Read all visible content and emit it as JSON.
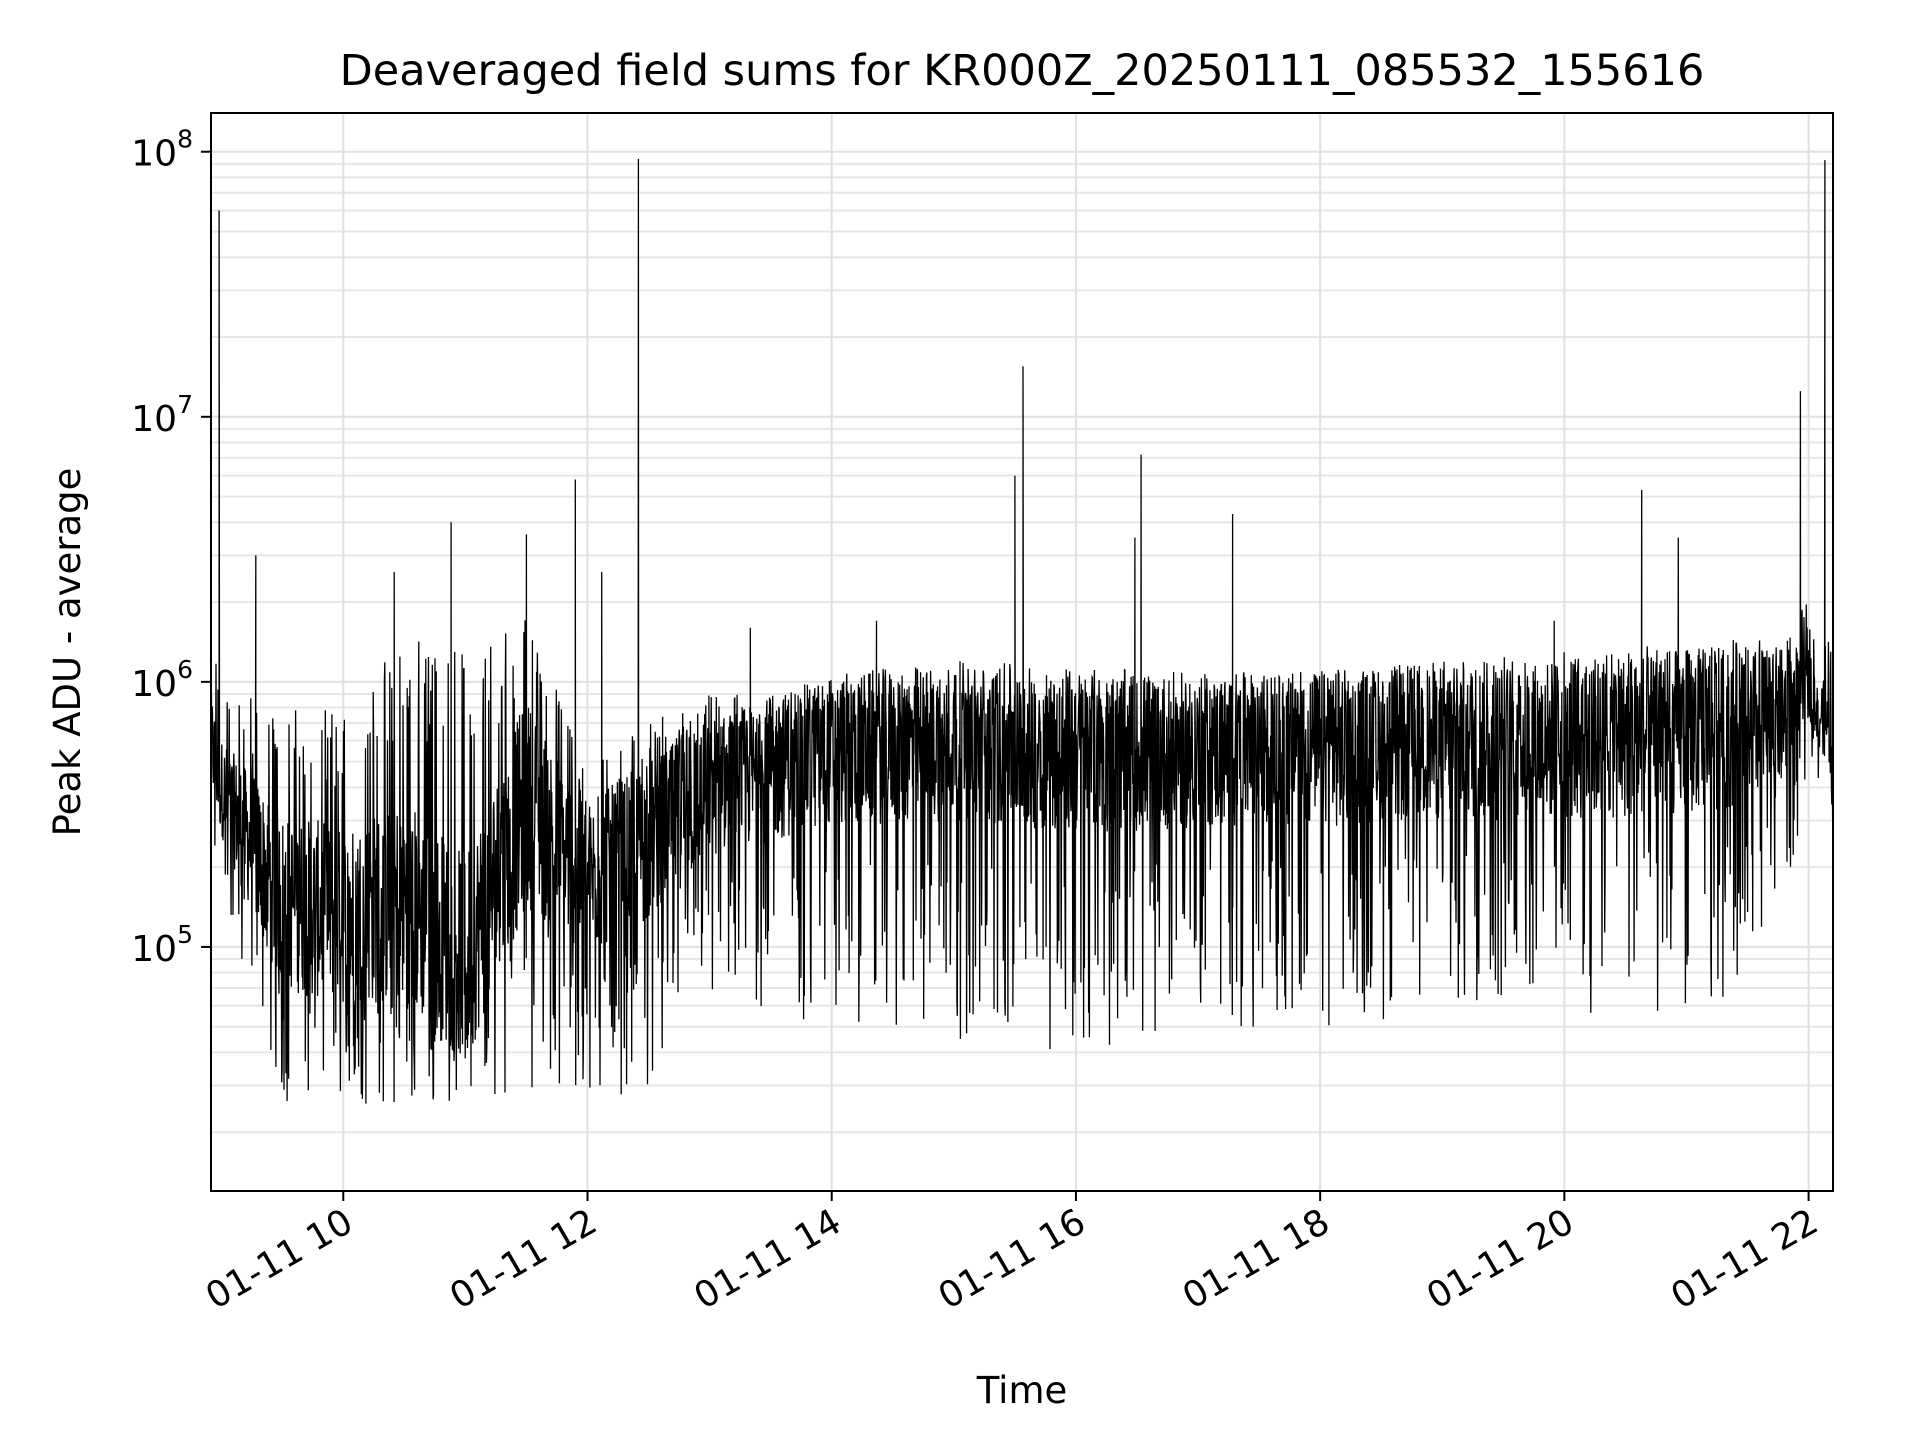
{
  "chart_data": {
    "type": "line",
    "title": "Deaveraged field sums for KR000Z_20250111_085532_155616",
    "xlabel": "Time",
    "ylabel": "Peak ADU - average",
    "y_scale": "log",
    "grid": true,
    "legend": "none",
    "line_color": "#000000",
    "xlim": [
      "2025-01-11 08:55",
      "2025-01-11 22:12"
    ],
    "ylim": [
      12000,
      140000000
    ],
    "x_ticks": [
      "01-11 10",
      "01-11 12",
      "01-11 14",
      "01-11 16",
      "01-11 18",
      "01-11 20",
      "01-11 22"
    ],
    "y_ticks": [
      {
        "base": "10",
        "exp": "5"
      },
      {
        "base": "10",
        "exp": "6"
      },
      {
        "base": "10",
        "exp": "7"
      },
      {
        "base": "10",
        "exp": "8"
      }
    ],
    "series": [
      {
        "x": [
          "2025-01-11 08:55",
          "2025-01-11 09:00",
          "2025-01-11 09:30",
          "2025-01-11 10:00",
          "2025-01-11 10:30",
          "2025-01-11 11:00",
          "2025-01-11 11:30",
          "2025-01-11 12:00",
          "2025-01-11 12:30",
          "2025-01-11 13:00",
          "2025-01-11 14:00",
          "2025-01-11 15:00",
          "2025-01-11 16:00",
          "2025-01-11 17:00",
          "2025-01-11 18:00",
          "2025-01-11 19:00",
          "2025-01-11 20:00",
          "2025-01-11 21:00",
          "2025-01-11 21:45",
          "2025-01-11 22:00",
          "2025-01-11 22:12"
        ],
        "y": [
          600000,
          400000,
          150000,
          130000,
          150000,
          90000,
          350000,
          180000,
          250000,
          400000,
          550000,
          600000,
          550000,
          550000,
          550000,
          600000,
          600000,
          650000,
          700000,
          1000000,
          600000
        ],
        "low": [
          200000,
          150000,
          25000,
          25000,
          25000,
          25000,
          30000,
          25000,
          30000,
          60000,
          50000,
          45000,
          40000,
          50000,
          50000,
          55000,
          55000,
          55000,
          80000,
          500000,
          300000
        ],
        "high": [
          1500000,
          1000000,
          800000,
          800000,
          1500000,
          1500000,
          1800000,
          500000,
          700000,
          900000,
          950000,
          1000000,
          1000000,
          1000000,
          1100000,
          1200000,
          1300000,
          1400000,
          1500000,
          2000000,
          1400000
        ],
        "spikes": [
          {
            "x": "2025-01-11 08:59",
            "y": 60000000
          },
          {
            "x": "2025-01-11 09:17",
            "y": 3000000
          },
          {
            "x": "2025-01-11 10:25",
            "y": 2600000
          },
          {
            "x": "2025-01-11 10:53",
            "y": 4000000
          },
          {
            "x": "2025-01-11 11:30",
            "y": 3600000
          },
          {
            "x": "2025-01-11 11:54",
            "y": 5800000
          },
          {
            "x": "2025-01-11 12:07",
            "y": 2600000
          },
          {
            "x": "2025-01-11 12:25",
            "y": 94000000
          },
          {
            "x": "2025-01-11 13:20",
            "y": 1600000
          },
          {
            "x": "2025-01-11 14:22",
            "y": 1700000
          },
          {
            "x": "2025-01-11 15:30",
            "y": 6000000
          },
          {
            "x": "2025-01-11 15:34",
            "y": 15500000
          },
          {
            "x": "2025-01-11 16:29",
            "y": 3500000
          },
          {
            "x": "2025-01-11 16:32",
            "y": 7200000
          },
          {
            "x": "2025-01-11 17:17",
            "y": 4300000
          },
          {
            "x": "2025-01-11 19:55",
            "y": 1700000
          },
          {
            "x": "2025-01-11 20:38",
            "y": 5300000
          },
          {
            "x": "2025-01-11 20:56",
            "y": 3500000
          },
          {
            "x": "2025-01-11 21:56",
            "y": 12500000
          },
          {
            "x": "2025-01-11 22:08",
            "y": 93000000
          }
        ]
      }
    ]
  }
}
